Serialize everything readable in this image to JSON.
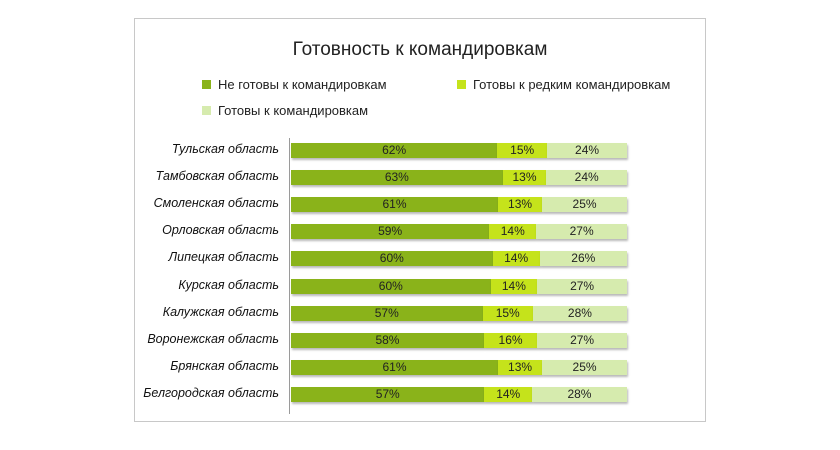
{
  "chart_data": {
    "type": "bar",
    "orientation": "horizontal",
    "stacked": true,
    "title": "Готовность к командировкам",
    "categories": [
      "Тульская область",
      "Тамбовская область",
      "Смоленская область",
      "Орловская область",
      "Липецкая область",
      "Курская область",
      "Калужская область",
      "Воронежская область",
      "Брянская область",
      "Белгородская область"
    ],
    "series": [
      {
        "name": "Не готовы к командировкам",
        "color": "#8ab31a",
        "values": [
          62,
          63,
          61,
          59,
          60,
          60,
          57,
          58,
          61,
          57
        ]
      },
      {
        "name": "Готовы к редким командировкам",
        "color": "#c5e31b",
        "values": [
          15,
          13,
          13,
          14,
          14,
          14,
          15,
          16,
          13,
          14
        ]
      },
      {
        "name": "Готовы к командировкам",
        "color": "#d6ebae",
        "values": [
          24,
          24,
          25,
          27,
          26,
          27,
          28,
          27,
          25,
          28
        ]
      }
    ],
    "value_format": "percent",
    "legend_position": "top",
    "grid": false
  }
}
